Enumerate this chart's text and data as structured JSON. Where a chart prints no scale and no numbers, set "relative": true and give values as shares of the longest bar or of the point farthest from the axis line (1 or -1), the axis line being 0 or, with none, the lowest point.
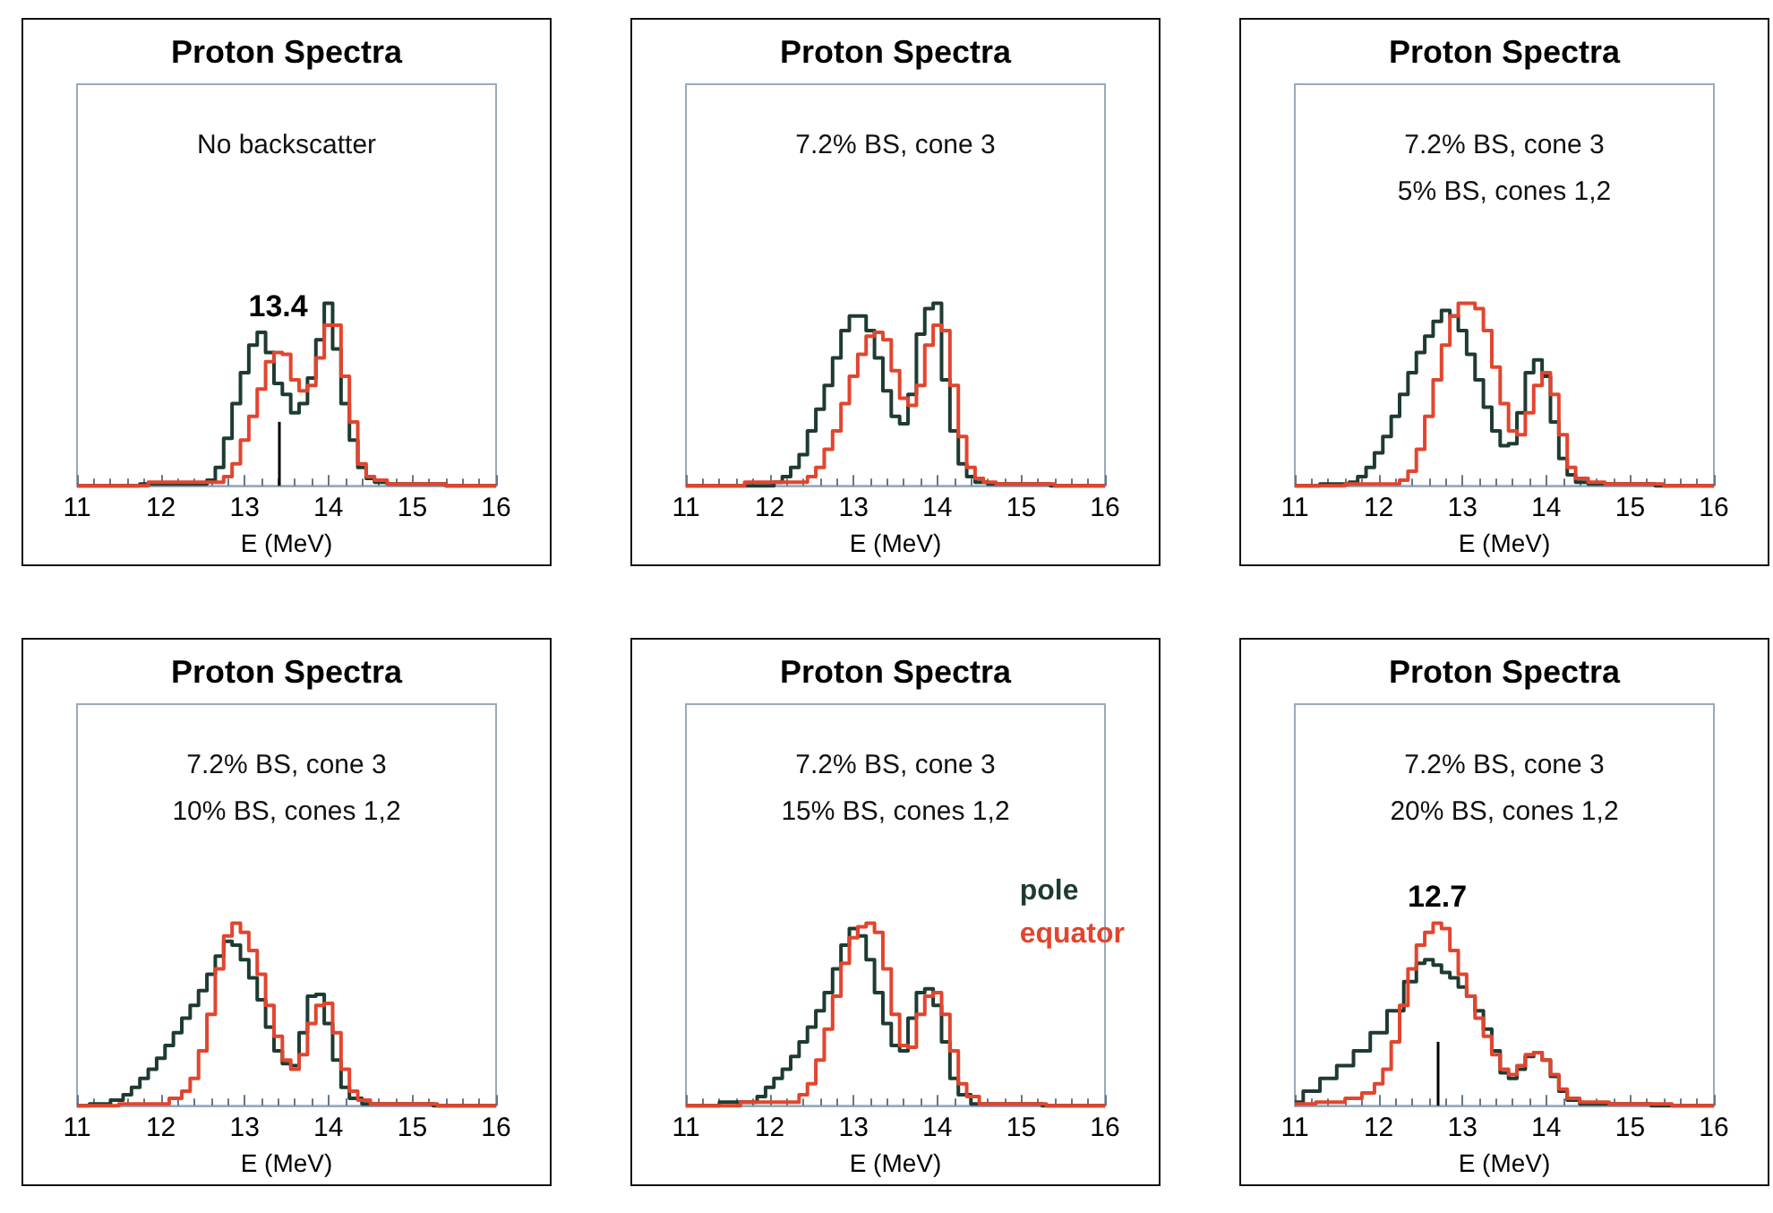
{
  "chart_data": [
    {
      "type": "step",
      "title": "Proton Spectra",
      "subtitle": "No backscatter",
      "xlabel": "E (MeV)",
      "relative": true,
      "xlim": [
        11,
        16
      ],
      "xticks": [
        11,
        12,
        13,
        14,
        15,
        16
      ],
      "legend": false,
      "ref_lines": [
        {
          "axis": "x",
          "value": 13.4,
          "label": "13.4"
        }
      ],
      "series": [
        {
          "color": "#1e3b32",
          "x": [
            11,
            12.5,
            12.6,
            12.7,
            12.8,
            12.9,
            13.0,
            13.1,
            13.2,
            13.3,
            13.4,
            13.5,
            13.6,
            13.7,
            13.8,
            13.9,
            14.0,
            14.1,
            14.2,
            14.3,
            14.4,
            14.5,
            14.6,
            14.8,
            16
          ],
          "values": [
            0,
            0.01,
            0.03,
            0.1,
            0.26,
            0.45,
            0.62,
            0.77,
            0.84,
            0.73,
            0.56,
            0.5,
            0.4,
            0.45,
            0.59,
            0.8,
            1,
            0.75,
            0.45,
            0.25,
            0.1,
            0.04,
            0.02,
            0.01,
            0
          ]
        },
        {
          "color": "#e2452e",
          "x": [
            11,
            12.7,
            12.8,
            12.9,
            13.0,
            13.1,
            13.2,
            13.3,
            13.4,
            13.5,
            13.6,
            13.7,
            13.8,
            13.9,
            14.0,
            14.1,
            14.2,
            14.3,
            14.4,
            14.5,
            14.6,
            14.8,
            16
          ],
          "values": [
            0,
            0.02,
            0.05,
            0.12,
            0.25,
            0.38,
            0.53,
            0.68,
            0.73,
            0.72,
            0.58,
            0.52,
            0.55,
            0.7,
            0.88,
            0.88,
            0.6,
            0.35,
            0.12,
            0.05,
            0.03,
            0.01,
            0
          ]
        }
      ]
    },
    {
      "type": "step",
      "title": "Proton Spectra",
      "subtitle": "7.2% BS, cone 3",
      "xlabel": "E (MeV)",
      "relative": true,
      "xlim": [
        11,
        16
      ],
      "xticks": [
        11,
        12,
        13,
        14,
        15,
        16
      ],
      "legend": false,
      "series": [
        {
          "color": "#1e3b32",
          "x": [
            11,
            12.0,
            12.1,
            12.2,
            12.3,
            12.4,
            12.5,
            12.6,
            12.7,
            12.8,
            12.9,
            13.0,
            13.1,
            13.2,
            13.3,
            13.4,
            13.5,
            13.6,
            13.7,
            13.8,
            13.9,
            14.0,
            14.1,
            14.2,
            14.3,
            14.4,
            14.5,
            14.7,
            16
          ],
          "values": [
            0,
            0,
            0.02,
            0.05,
            0.1,
            0.17,
            0.3,
            0.42,
            0.55,
            0.7,
            0.85,
            0.93,
            0.93,
            0.85,
            0.7,
            0.52,
            0.38,
            0.34,
            0.5,
            0.83,
            0.97,
            1,
            0.58,
            0.3,
            0.12,
            0.05,
            0.02,
            0.01,
            0
          ]
        },
        {
          "color": "#e2452e",
          "x": [
            11,
            12.4,
            12.5,
            12.6,
            12.7,
            12.8,
            12.9,
            13.0,
            13.1,
            13.2,
            13.3,
            13.4,
            13.5,
            13.6,
            13.7,
            13.8,
            13.9,
            14.0,
            14.1,
            14.2,
            14.3,
            14.4,
            14.5,
            14.6,
            14.8,
            16
          ],
          "values": [
            0,
            0.02,
            0.05,
            0.1,
            0.2,
            0.3,
            0.45,
            0.6,
            0.72,
            0.82,
            0.84,
            0.8,
            0.63,
            0.48,
            0.44,
            0.55,
            0.77,
            0.88,
            0.85,
            0.55,
            0.27,
            0.1,
            0.04,
            0.02,
            0.01,
            0
          ]
        }
      ]
    },
    {
      "type": "step",
      "title": "Proton Spectra",
      "subtitle": "7.2% BS, cone 3\n5% BS, cones 1,2",
      "xlabel": "E (MeV)",
      "relative": true,
      "xlim": [
        11,
        16
      ],
      "xticks": [
        11,
        12,
        13,
        14,
        15,
        16
      ],
      "legend": false,
      "series": [
        {
          "color": "#1e3b32",
          "x": [
            11,
            11.6,
            11.7,
            11.8,
            11.9,
            12.0,
            12.1,
            12.2,
            12.3,
            12.4,
            12.5,
            12.6,
            12.7,
            12.8,
            12.9,
            13.0,
            13.1,
            13.2,
            13.3,
            13.4,
            13.5,
            13.6,
            13.7,
            13.8,
            13.9,
            14.0,
            14.1,
            14.2,
            14.3,
            14.4,
            14.6,
            16
          ],
          "values": [
            0,
            0.01,
            0.02,
            0.05,
            0.1,
            0.18,
            0.27,
            0.38,
            0.5,
            0.62,
            0.73,
            0.82,
            0.9,
            0.96,
            0.93,
            0.85,
            0.72,
            0.58,
            0.43,
            0.3,
            0.22,
            0.23,
            0.4,
            0.62,
            0.69,
            0.6,
            0.35,
            0.15,
            0.06,
            0.02,
            0.01,
            0
          ]
        },
        {
          "color": "#e2452e",
          "x": [
            11,
            12.2,
            12.3,
            12.4,
            12.5,
            12.6,
            12.7,
            12.8,
            12.9,
            13.0,
            13.1,
            13.2,
            13.3,
            13.4,
            13.5,
            13.6,
            13.7,
            13.8,
            13.9,
            14.0,
            14.1,
            14.2,
            14.3,
            14.4,
            14.6,
            14.8,
            16
          ],
          "values": [
            0,
            0.01,
            0.03,
            0.08,
            0.2,
            0.38,
            0.58,
            0.77,
            0.93,
            1,
            1,
            0.97,
            0.85,
            0.65,
            0.45,
            0.3,
            0.28,
            0.4,
            0.55,
            0.62,
            0.5,
            0.28,
            0.1,
            0.04,
            0.02,
            0.01,
            0
          ]
        }
      ]
    },
    {
      "type": "step",
      "title": "Proton Spectra",
      "subtitle": "7.2% BS, cone 3\n10% BS, cones 1,2",
      "xlabel": "E (MeV)",
      "relative": true,
      "xlim": [
        11,
        16
      ],
      "xticks": [
        11,
        12,
        13,
        14,
        15,
        16
      ],
      "legend": false,
      "series": [
        {
          "color": "#1e3b32",
          "x": [
            11,
            11.3,
            11.5,
            11.6,
            11.7,
            11.8,
            11.9,
            12.0,
            12.1,
            12.2,
            12.3,
            12.4,
            12.5,
            12.6,
            12.7,
            12.8,
            12.9,
            13.0,
            13.1,
            13.2,
            13.3,
            13.4,
            13.5,
            13.6,
            13.7,
            13.8,
            13.9,
            14.0,
            14.1,
            14.2,
            14.3,
            14.5,
            16
          ],
          "values": [
            0,
            0.01,
            0.03,
            0.06,
            0.1,
            0.15,
            0.2,
            0.26,
            0.33,
            0.4,
            0.48,
            0.55,
            0.63,
            0.72,
            0.82,
            0.9,
            0.88,
            0.8,
            0.7,
            0.58,
            0.43,
            0.3,
            0.23,
            0.22,
            0.4,
            0.6,
            0.61,
            0.45,
            0.25,
            0.1,
            0.04,
            0.01,
            0
          ]
        },
        {
          "color": "#e2452e",
          "x": [
            11,
            12.0,
            12.2,
            12.3,
            12.4,
            12.5,
            12.6,
            12.7,
            12.8,
            12.9,
            13.0,
            13.1,
            13.2,
            13.3,
            13.4,
            13.5,
            13.6,
            13.7,
            13.8,
            13.9,
            14.0,
            14.1,
            14.2,
            14.3,
            14.4,
            14.6,
            16
          ],
          "values": [
            0,
            0.01,
            0.04,
            0.08,
            0.15,
            0.3,
            0.5,
            0.75,
            0.93,
            1,
            0.95,
            0.85,
            0.72,
            0.55,
            0.38,
            0.25,
            0.2,
            0.28,
            0.45,
            0.55,
            0.56,
            0.4,
            0.2,
            0.08,
            0.03,
            0.01,
            0
          ]
        }
      ]
    },
    {
      "type": "step",
      "title": "Proton Spectra",
      "subtitle": "7.2% BS, cone 3\n15% BS, cones 1,2",
      "xlabel": "E (MeV)",
      "relative": true,
      "xlim": [
        11,
        16
      ],
      "xticks": [
        11,
        12,
        13,
        14,
        15,
        16
      ],
      "legend": "right",
      "series": [
        {
          "name": "pole",
          "color": "#1e3b32",
          "x": [
            11,
            11.8,
            11.9,
            12.0,
            12.1,
            12.2,
            12.3,
            12.4,
            12.5,
            12.6,
            12.7,
            12.8,
            12.9,
            13.0,
            13.1,
            13.2,
            13.3,
            13.4,
            13.5,
            13.6,
            13.7,
            13.8,
            13.9,
            14.0,
            14.1,
            14.2,
            14.3,
            14.5,
            16
          ],
          "values": [
            0,
            0.02,
            0.05,
            0.1,
            0.15,
            0.2,
            0.27,
            0.35,
            0.43,
            0.52,
            0.62,
            0.75,
            0.88,
            0.97,
            0.93,
            0.8,
            0.62,
            0.45,
            0.33,
            0.3,
            0.48,
            0.62,
            0.64,
            0.55,
            0.35,
            0.15,
            0.06,
            0.01,
            0
          ]
        },
        {
          "name": "equator",
          "color": "#e2452e",
          "x": [
            11,
            12.3,
            12.4,
            12.5,
            12.6,
            12.7,
            12.8,
            12.9,
            13.0,
            13.1,
            13.2,
            13.3,
            13.4,
            13.5,
            13.6,
            13.7,
            13.8,
            13.9,
            14.0,
            14.1,
            14.2,
            14.3,
            14.4,
            14.6,
            16
          ],
          "values": [
            0,
            0.02,
            0.06,
            0.12,
            0.25,
            0.42,
            0.6,
            0.78,
            0.92,
            0.98,
            1,
            0.95,
            0.75,
            0.5,
            0.33,
            0.32,
            0.5,
            0.6,
            0.62,
            0.5,
            0.3,
            0.12,
            0.05,
            0.01,
            0
          ]
        }
      ]
    },
    {
      "type": "step",
      "title": "Proton Spectra",
      "subtitle": "7.2% BS, cone 3\n20% BS, cones 1,2",
      "xlabel": "E (MeV)",
      "relative": true,
      "xlim": [
        11,
        16
      ],
      "xticks": [
        11,
        12,
        13,
        14,
        15,
        16
      ],
      "legend": false,
      "ref_lines": [
        {
          "axis": "x",
          "value": 12.7,
          "label": "12.7"
        }
      ],
      "series": [
        {
          "color": "#1e3b32",
          "x": [
            11.0,
            11.2,
            11.4,
            11.6,
            11.8,
            12.0,
            12.2,
            12.4,
            12.5,
            12.6,
            12.7,
            12.8,
            12.9,
            13.0,
            13.1,
            13.2,
            13.3,
            13.4,
            13.5,
            13.6,
            13.7,
            13.8,
            13.9,
            14.0,
            14.1,
            14.2,
            14.3,
            14.5,
            16
          ],
          "values": [
            0.02,
            0.08,
            0.15,
            0.22,
            0.3,
            0.4,
            0.52,
            0.68,
            0.78,
            0.8,
            0.77,
            0.73,
            0.7,
            0.65,
            0.6,
            0.52,
            0.42,
            0.3,
            0.18,
            0.15,
            0.2,
            0.27,
            0.29,
            0.25,
            0.16,
            0.08,
            0.03,
            0.01,
            0
          ]
        },
        {
          "color": "#e2452e",
          "x": [
            11.0,
            11.5,
            11.7,
            11.9,
            12.0,
            12.1,
            12.2,
            12.3,
            12.4,
            12.5,
            12.6,
            12.7,
            12.8,
            12.9,
            13.0,
            13.1,
            13.2,
            13.3,
            13.4,
            13.5,
            13.6,
            13.7,
            13.8,
            13.9,
            14.0,
            14.1,
            14.2,
            14.3,
            14.5,
            15.0,
            16
          ],
          "values": [
            0.01,
            0.02,
            0.04,
            0.07,
            0.12,
            0.2,
            0.35,
            0.55,
            0.75,
            0.88,
            0.95,
            1,
            0.97,
            0.85,
            0.72,
            0.6,
            0.48,
            0.38,
            0.28,
            0.2,
            0.17,
            0.22,
            0.28,
            0.29,
            0.25,
            0.17,
            0.09,
            0.04,
            0.02,
            0.01,
            0
          ]
        }
      ]
    }
  ]
}
